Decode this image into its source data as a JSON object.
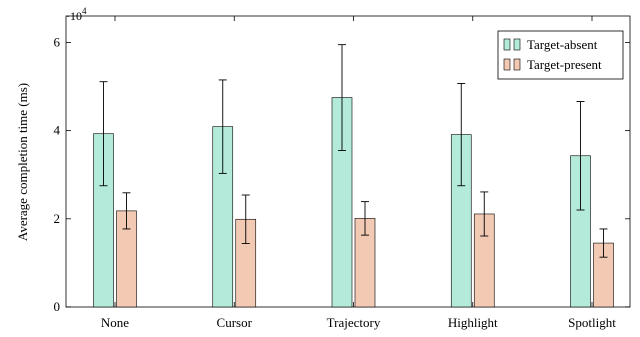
{
  "chart_data": {
    "type": "bar",
    "categories": [
      "None",
      "Cursor",
      "Trajectory",
      "Highlight",
      "Spotlight"
    ],
    "series": [
      {
        "name": "Target-absent",
        "color": "#b3ead9",
        "values": [
          39300,
          40900,
          47500,
          39100,
          34300
        ],
        "error": [
          11800,
          10600,
          12000,
          11600,
          12300
        ]
      },
      {
        "name": "Target-present",
        "color": "#f2c9b3",
        "values": [
          21800,
          19900,
          20100,
          21100,
          14500
        ],
        "error": [
          4100,
          5500,
          3800,
          5000,
          3200
        ]
      }
    ],
    "ylabel": "Average completion time (ms)",
    "y_multiplier_label": "10",
    "y_multiplier_exponent": "4",
    "y_multiplier_prefix": "·",
    "ylim": [
      0,
      66000
    ],
    "yticks": [
      0,
      20000,
      40000,
      60000
    ],
    "ytick_labels": [
      "0",
      "2",
      "4",
      "6"
    ],
    "legend_position": "top-right",
    "grid": false
  }
}
